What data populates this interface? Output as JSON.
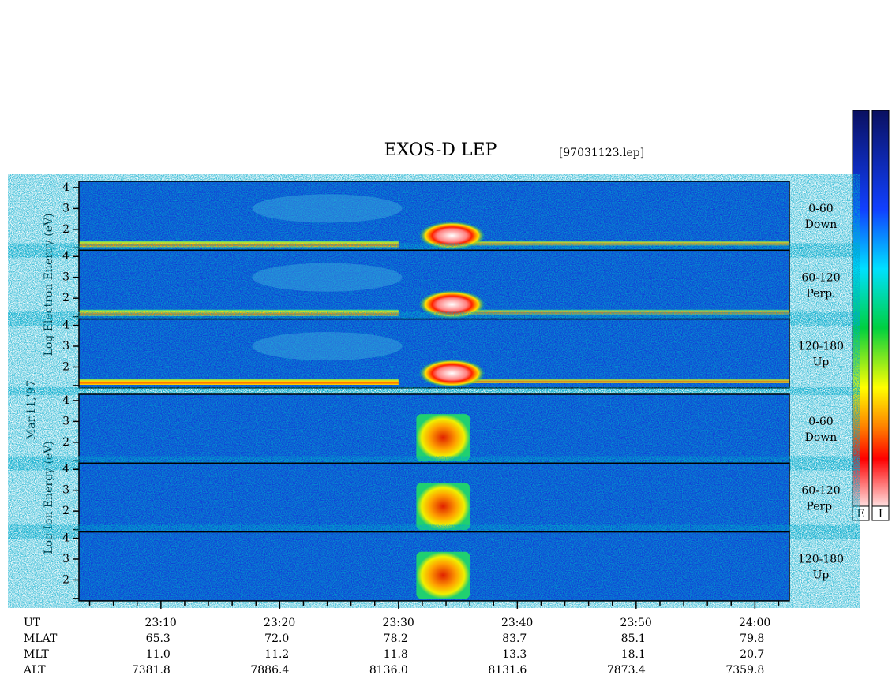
{
  "chart_data": {
    "type": "spectrogram",
    "title": "EXOS-D LEP",
    "file": "[97031123.lep]",
    "date": "Mar.11,'97",
    "groups": [
      {
        "axis_label": "Log Electron Energy (eV)",
        "panels": [
          {
            "label": [
              "0-60",
              "Down"
            ]
          },
          {
            "label": [
              "60-120",
              "Perp."
            ]
          },
          {
            "label": [
              "120-180",
              "Up"
            ]
          }
        ]
      },
      {
        "axis_label": "Log Ion Energy (eV)",
        "panels": [
          {
            "label": [
              "0-60",
              "Down"
            ]
          },
          {
            "label": [
              "60-120",
              "Perp."
            ]
          },
          {
            "label": [
              "120-180",
              "Up"
            ]
          }
        ]
      }
    ],
    "ylim": [
      1,
      4.3
    ],
    "yticks": [
      2,
      3,
      4
    ],
    "xlim": [
      1383.1,
      1442.9
    ],
    "xticks": [
      {
        "value": 1390,
        "label": "23:10"
      },
      {
        "value": 1400,
        "label": "23:20"
      },
      {
        "value": 1410,
        "label": "23:30"
      },
      {
        "value": 1420,
        "label": "23:40"
      },
      {
        "value": 1430,
        "label": "23:50"
      },
      {
        "value": 1440,
        "label": "24:00"
      }
    ],
    "xminor_ticks": [
      1384,
      1386,
      1388,
      1392,
      1394,
      1396,
      1398,
      1402,
      1404,
      1406,
      1408,
      1412,
      1414,
      1416,
      1418,
      1422,
      1424,
      1426,
      1428,
      1432,
      1434,
      1436,
      1438,
      1442
    ],
    "ephemeris": [
      {
        "name": "UT"
      },
      {
        "name": "MLAT",
        "values": [
          "65.3",
          "72.0",
          "78.2",
          "83.7",
          "85.1",
          "79.8"
        ]
      },
      {
        "name": "MLT",
        "values": [
          "11.0",
          "11.2",
          "11.8",
          "13.3",
          "18.1",
          "20.7"
        ]
      },
      {
        "name": "ALT",
        "values": [
          "7381.8",
          "7886.4",
          "8136.0",
          "8131.6",
          "7873.4",
          "7359.8"
        ]
      }
    ],
    "colorbars": [
      "E",
      "I"
    ]
  }
}
